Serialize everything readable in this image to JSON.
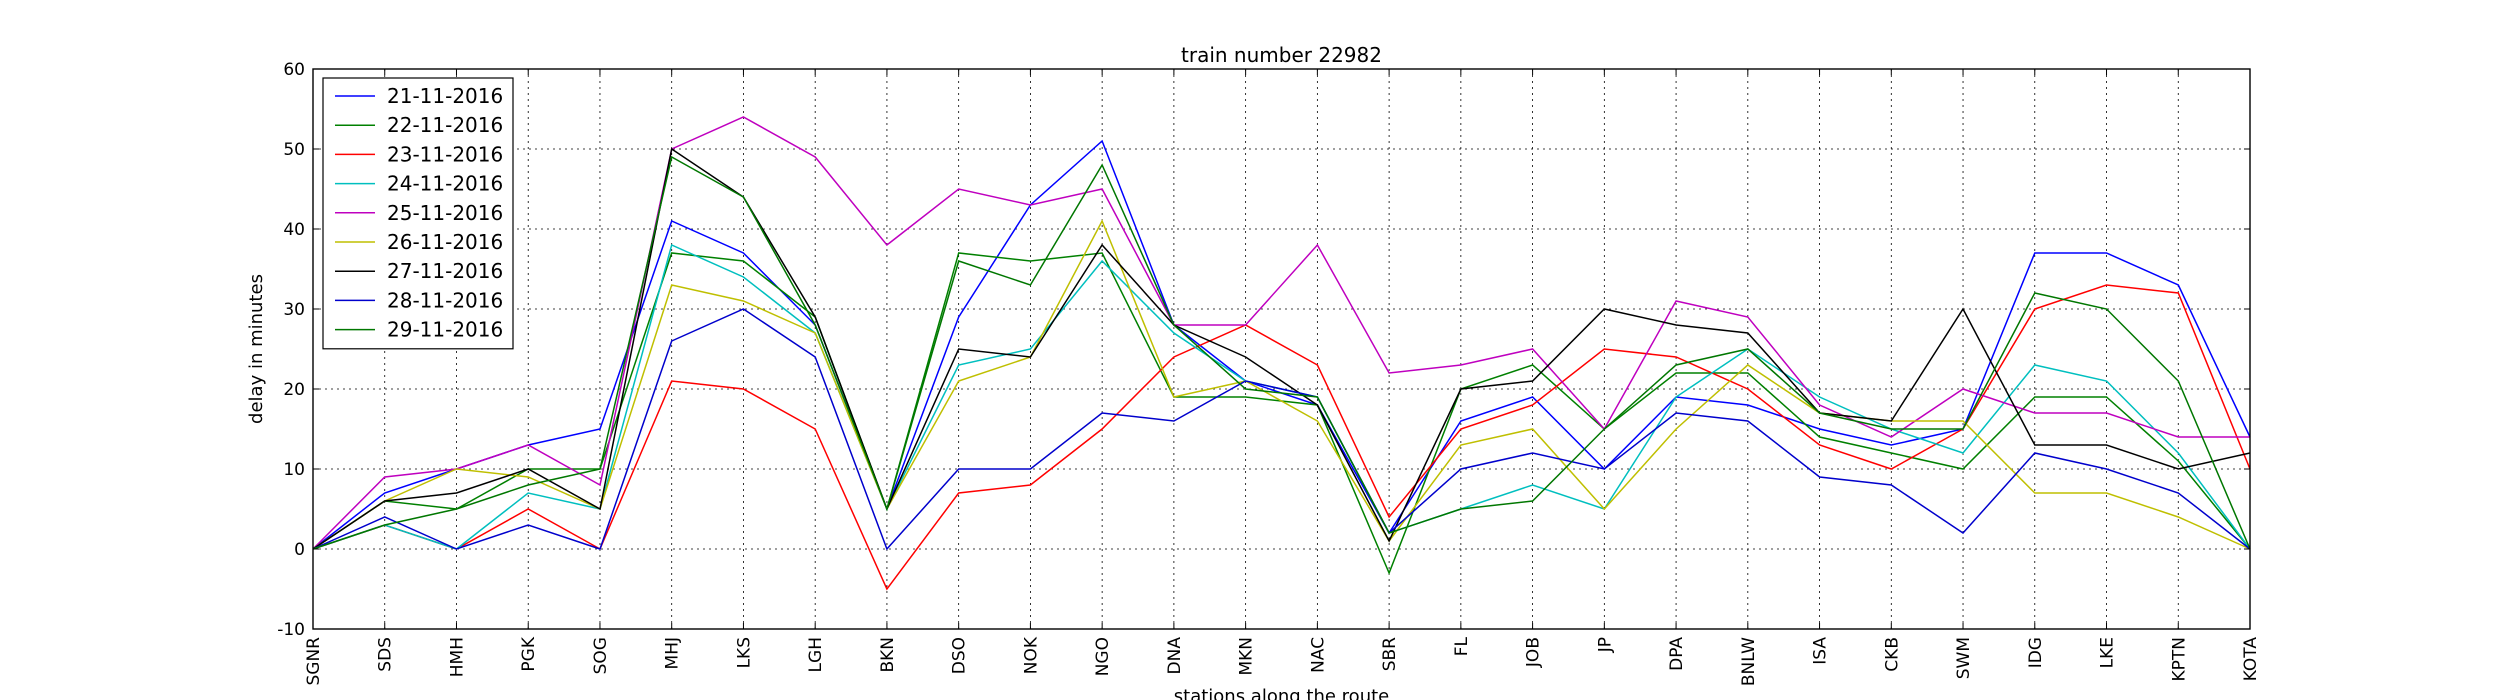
{
  "chart_data": {
    "type": "line",
    "title": "train number 22982",
    "xlabel": "stations along the route",
    "ylabel": "delay in minutes",
    "ylim": [
      -10,
      60
    ],
    "yticks": [
      -10,
      0,
      10,
      20,
      30,
      40,
      50,
      60
    ],
    "grid": true,
    "legend_position": "top-left",
    "categories": [
      "SGNR",
      "SDS",
      "HMH",
      "PGK",
      "SOG",
      "MHJ",
      "LKS",
      "LGH",
      "BKN",
      "DSO",
      "NOK",
      "NGO",
      "DNA",
      "MKN",
      "NAC",
      "SBR",
      "FL",
      "JOB",
      "JP",
      "DPA",
      "BNLW",
      "ISA",
      "CKB",
      "SWM",
      "IDG",
      "LKE",
      "KPTN",
      "KOTA"
    ],
    "series": [
      {
        "name": "21-11-2016",
        "color": "#0000ff",
        "values": [
          0,
          7,
          10,
          13,
          15,
          41,
          37,
          28,
          5,
          29,
          43,
          51,
          28,
          21,
          18,
          2,
          16,
          19,
          10,
          19,
          18,
          15,
          13,
          15,
          37,
          37,
          33,
          14
        ]
      },
      {
        "name": "22-11-2016",
        "color": "#008000",
        "values": [
          0,
          6,
          5,
          10,
          10,
          37,
          36,
          29,
          5,
          37,
          36,
          37,
          19,
          19,
          18,
          -3,
          20,
          23,
          15,
          22,
          22,
          14,
          12,
          10,
          19,
          19,
          11,
          0
        ]
      },
      {
        "name": "23-11-2016",
        "color": "#ff0000",
        "values": [
          0,
          3,
          0,
          5,
          0,
          21,
          20,
          15,
          -5,
          7,
          8,
          15,
          24,
          28,
          23,
          4,
          15,
          18,
          25,
          24,
          20,
          13,
          10,
          15,
          30,
          33,
          32,
          10
        ]
      },
      {
        "name": "24-11-2016",
        "color": "#00bfbf",
        "values": [
          0,
          3,
          0,
          7,
          5,
          38,
          34,
          27,
          5,
          23,
          25,
          36,
          27,
          21,
          19,
          2,
          5,
          8,
          5,
          19,
          25,
          19,
          15,
          12,
          23,
          21,
          12,
          0
        ]
      },
      {
        "name": "25-11-2016",
        "color": "#bf00bf",
        "values": [
          0,
          9,
          10,
          13,
          8,
          50,
          54,
          49,
          38,
          45,
          43,
          45,
          28,
          28,
          38,
          22,
          23,
          25,
          15,
          31,
          29,
          18,
          14,
          20,
          17,
          17,
          14,
          14
        ]
      },
      {
        "name": "26-11-2016",
        "color": "#bfbf00",
        "values": [
          0,
          6,
          10,
          9,
          5,
          33,
          31,
          27,
          5,
          21,
          24,
          41,
          19,
          21,
          16,
          1,
          13,
          15,
          5,
          15,
          23,
          17,
          16,
          16,
          7,
          7,
          4,
          0
        ]
      },
      {
        "name": "27-11-2016",
        "color": "#000000",
        "values": [
          0,
          6,
          7,
          10,
          5,
          50,
          44,
          29,
          5,
          25,
          24,
          38,
          28,
          24,
          18,
          1,
          20,
          21,
          30,
          28,
          27,
          17,
          16,
          30,
          13,
          13,
          10,
          12
        ]
      },
      {
        "name": "28-11-2016",
        "color": "#0000cc",
        "values": [
          0,
          4,
          0,
          3,
          0,
          26,
          30,
          24,
          0,
          10,
          10,
          17,
          16,
          21,
          19,
          2,
          10,
          12,
          10,
          17,
          16,
          9,
          8,
          2,
          12,
          10,
          7,
          0
        ]
      },
      {
        "name": "29-11-2016",
        "color": "#007700",
        "values": [
          0,
          3,
          5,
          8,
          10,
          49,
          44,
          28,
          5,
          36,
          33,
          48,
          28,
          20,
          19,
          2,
          5,
          6,
          15,
          23,
          25,
          17,
          15,
          15,
          32,
          30,
          21,
          0
        ]
      }
    ]
  }
}
